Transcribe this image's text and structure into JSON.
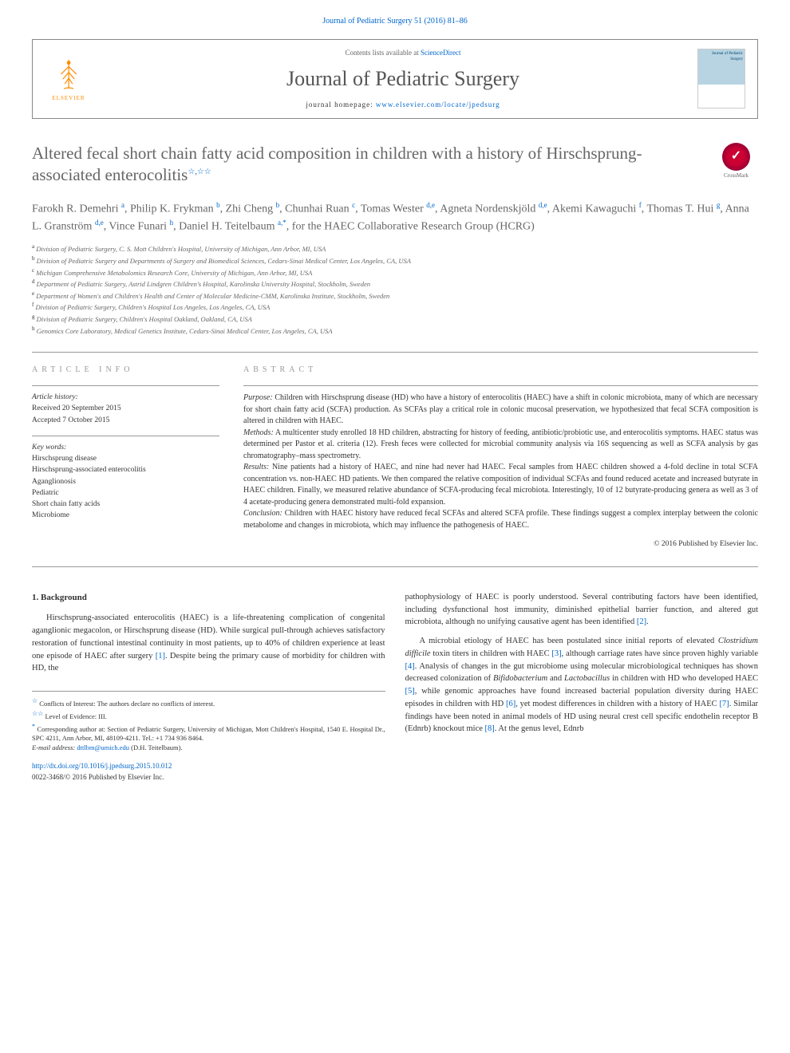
{
  "topLink": "Journal of Pediatric Surgery 51 (2016) 81–86",
  "header": {
    "elsevierLabel": "ELSEVIER",
    "contentsLine": "Contents lists available at ",
    "scienceDirect": "ScienceDirect",
    "journalName": "Journal of Pediatric Surgery",
    "homepagePrefix": "journal homepage: ",
    "homepageUrl": "www.elsevier.com/locate/jpedsurg",
    "coverText": "Journal of Pediatric Surgery"
  },
  "crossmark": {
    "symbol": "✓",
    "label": "CrossMark"
  },
  "title": "Altered fecal short chain fatty acid composition in children with a history of Hirschsprung-associated enterocolitis",
  "titleStars": "☆,☆☆",
  "authors": "Farokh R. Demehri <sup>a</sup>, Philip K. Frykman <sup>b</sup>, Zhi Cheng <sup>b</sup>, Chunhai Ruan <sup>c</sup>, Tomas Wester <sup>d,e</sup>, Agneta Nordenskjöld <sup>d,e</sup>, Akemi Kawaguchi <sup>f</sup>, Thomas T. Hui <sup>g</sup>, Anna L. Granström <sup>d,e</sup>, Vince Funari <sup>h</sup>, Daniel H. Teitelbaum <sup>a,*</sup>, for the HAEC Collaborative Research Group (HCRG)",
  "affiliations": [
    {
      "sup": "a",
      "text": "Division of Pediatric Surgery, C. S. Mott Children's Hospital, University of Michigan, Ann Arbor, MI, USA"
    },
    {
      "sup": "b",
      "text": "Division of Pediatric Surgery and Departments of Surgery and Biomedical Sciences, Cedars-Sinai Medical Center, Los Angeles, CA, USA"
    },
    {
      "sup": "c",
      "text": "Michigan Comprehensive Metabolomics Research Core, University of Michigan, Ann Arbor, MI, USA"
    },
    {
      "sup": "d",
      "text": "Department of Pediatric Surgery, Astrid Lindgren Children's Hospital, Karolinska University Hospital, Stockholm, Sweden"
    },
    {
      "sup": "e",
      "text": "Department of Women's and Children's Health and Center of Molecular Medicine-CMM, Karolinska Institute, Stockholm, Sweden"
    },
    {
      "sup": "f",
      "text": "Division of Pediatric Surgery, Children's Hospital Los Angeles, Los Angeles, CA, USA"
    },
    {
      "sup": "g",
      "text": "Division of Pediatric Surgery, Children's Hospital Oakland, Oakland, CA, USA"
    },
    {
      "sup": "h",
      "text": "Genomics Core Laboratory, Medical Genetics Institute, Cedars-Sinai Medical Center, Los Angeles, CA, USA"
    }
  ],
  "articleInfo": {
    "heading": "ARTICLE INFO",
    "historyLabel": "Article history:",
    "received": "Received 20 September 2015",
    "accepted": "Accepted 7 October 2015",
    "keywordsLabel": "Key words:",
    "keywords": [
      "Hirschsprung disease",
      "Hirschsprung-associated enterocolitis",
      "Aganglionosis",
      "Pediatric",
      "Short chain fatty acids",
      "Microbiome"
    ]
  },
  "abstract": {
    "heading": "ABSTRACT",
    "purposeLabel": "Purpose:",
    "purpose": " Children with Hirschsprung disease (HD) who have a history of enterocolitis (HAEC) have a shift in colonic microbiota, many of which are necessary for short chain fatty acid (SCFA) production. As SCFAs play a critical role in colonic mucosal preservation, we hypothesized that fecal SCFA composition is altered in children with HAEC.",
    "methodsLabel": "Methods:",
    "methods": " A multicenter study enrolled 18 HD children, abstracting for history of feeding, antibiotic/probiotic use, and enterocolitis symptoms. HAEC status was determined per Pastor et al. criteria (12). Fresh feces were collected for microbial community analysis via 16S sequencing as well as SCFA analysis by gas chromatography–mass spectrometry.",
    "resultsLabel": "Results:",
    "results": " Nine patients had a history of HAEC, and nine had never had HAEC. Fecal samples from HAEC children showed a 4-fold decline in total SCFA concentration vs. non-HAEC HD patients. We then compared the relative composition of individual SCFAs and found reduced acetate and increased butyrate in HAEC children. Finally, we measured relative abundance of SCFA-producing fecal microbiota. Interestingly, 10 of 12 butyrate-producing genera as well as 3 of 4 acetate-producing genera demonstrated multi-fold expansion.",
    "conclusionLabel": "Conclusion:",
    "conclusion": " Children with HAEC history have reduced fecal SCFAs and altered SCFA profile. These findings suggest a complex interplay between the colonic metabolome and changes in microbiota, which may influence the pathogenesis of HAEC.",
    "copyright": "© 2016 Published by Elsevier Inc."
  },
  "body": {
    "section1Title": "1. Background",
    "col1p1": "Hirschsprung-associated enterocolitis (HAEC) is a life-threatening complication of congenital aganglionic megacolon, or Hirschsprung disease (HD). While surgical pull-through achieves satisfactory restoration of functional intestinal continuity in most patients, up to 40% of children experience at least one episode of HAEC after surgery ",
    "ref1": "[1]",
    "col1p1b": ". Despite being the primary cause of morbidity for children with HD, the",
    "col2p1": "pathophysiology of HAEC is poorly understood. Several contributing factors have been identified, including dysfunctional host immunity, diminished epithelial barrier function, and altered gut microbiota, although no unifying causative agent has been identified ",
    "ref2": "[2]",
    "col2p1b": ".",
    "col2p2a": "A microbial etiology of HAEC has been postulated since initial reports of elevated ",
    "col2p2ital": "Clostridium difficile",
    "col2p2b": " toxin titers in children with HAEC ",
    "ref3": "[3]",
    "col2p2c": ", although carriage rates have since proven highly variable ",
    "ref4": "[4]",
    "col2p2d": ". Analysis of changes in the gut microbiome using molecular microbiological techniques has shown decreased colonization of ",
    "col2p2ital2": "Bifidobacterium",
    "col2p2e": " and ",
    "col2p2ital3": "Lactobacillus",
    "col2p2f": " in children with HD who developed HAEC ",
    "ref5": "[5]",
    "col2p2g": ", while genomic approaches have found increased bacterial population diversity during HAEC episodes in children with HD ",
    "ref6": "[6]",
    "col2p2h": ", yet modest differences in children with a history of HAEC ",
    "ref7": "[7]",
    "col2p2i": ". Similar findings have been noted in animal models of HD using neural crest cell specific endothelin receptor B (Ednrb) knockout mice ",
    "ref8": "[8]",
    "col2p2j": ". At the genus level, Ednrb"
  },
  "footnotes": {
    "f1star": "☆",
    "f1": " Conflicts of Interest: The authors declare no conflicts of interest.",
    "f2star": "☆☆",
    "f2": " Level of Evidence: III.",
    "corrStar": "*",
    "corr": " Corresponding author at: Section of Pediatric Surgery, University of Michigan, Mott Children's Hospital, 1540 E. Hospital Dr., SPC 4211, Ann Arbor, MI, 48109-4211. Tel.: +1 734 936 8464.",
    "emailLabel": "E-mail address: ",
    "email": "dttlbm@umich.edu",
    "emailSuffix": " (D.H. Teitelbaum)."
  },
  "doi": {
    "url": "http://dx.doi.org/10.1016/j.jpedsurg.2015.10.012",
    "issn": "0022-3468/© 2016 Published by Elsevier Inc."
  },
  "colors": {
    "link": "#0066cc",
    "text": "#333333",
    "headingGray": "#666666",
    "lightGray": "#999999",
    "elsevierOrange": "#ff8c00",
    "crossmarkRed": "#cc0033"
  }
}
